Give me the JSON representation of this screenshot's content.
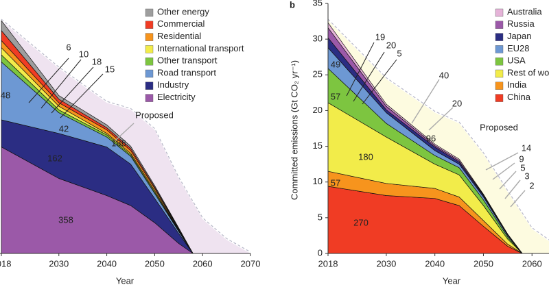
{
  "chart_data": [
    {
      "type": "stacked_area",
      "x_label": "Year",
      "x": [
        2018,
        2030,
        2040,
        2045,
        2050,
        2055,
        2058
      ],
      "xlim": [
        2018,
        2070
      ],
      "xticks": [
        2018,
        2030,
        2040,
        2050,
        2060,
        2070
      ],
      "ylim": [
        0,
        35
      ],
      "series": [
        {
          "name": "Electricity",
          "color": "#9b59a8",
          "values": [
            14.9,
            10.5,
            8.1,
            6.7,
            4.3,
            1.4,
            0
          ]
        },
        {
          "name": "Industry",
          "color": "#2b2d83",
          "values": [
            3.8,
            6.3,
            6.8,
            5.8,
            3.4,
            1.4,
            0
          ]
        },
        {
          "name": "Road transport",
          "color": "#6d98d3",
          "values": [
            8.1,
            2.9,
            1.4,
            1.1,
            0.7,
            0.3,
            0
          ]
        },
        {
          "name": "Other transport",
          "color": "#7dc540",
          "values": [
            1.0,
            0.4,
            0.3,
            0.2,
            0.2,
            0.1,
            0
          ]
        },
        {
          "name": "International transport",
          "color": "#f2ec4a",
          "values": [
            1.0,
            0.5,
            0.2,
            0.2,
            0.2,
            0.1,
            0
          ]
        },
        {
          "name": "Residential",
          "color": "#f7941d",
          "values": [
            1.0,
            0.5,
            0.5,
            0.4,
            0.3,
            0.1,
            0
          ]
        },
        {
          "name": "Commercial",
          "color": "#f03c24",
          "values": [
            1.4,
            0.5,
            0.3,
            0.3,
            0.2,
            0.1,
            0
          ]
        },
        {
          "name": "Other energy",
          "color": "#9e9e9e",
          "values": [
            1.4,
            0.5,
            0.4,
            0.3,
            0.2,
            0.1,
            0
          ]
        }
      ],
      "proposed": {
        "label": "Proposed",
        "color": "#efe3f0",
        "x": [
          2018,
          2030,
          2040,
          2045,
          2050,
          2055,
          2060,
          2065,
          2070
        ],
        "values": [
          32.6,
          25.9,
          21.1,
          20.1,
          17.3,
          10.5,
          4.8,
          1.9,
          0
        ]
      },
      "annotations": [
        {
          "text": "48",
          "color": "#ffffff"
        },
        {
          "text": "162",
          "color": "#ffffff"
        },
        {
          "text": "358",
          "color": "#ffffff"
        },
        {
          "text": "6",
          "color": "#8dc63f"
        },
        {
          "text": "10",
          "color": "#e8d800"
        },
        {
          "text": "18",
          "color": "#f03c24"
        },
        {
          "text": "15",
          "color": "#999999"
        },
        {
          "text": "42",
          "color": "#fff7a0"
        },
        {
          "text": "188",
          "color": "#999999"
        }
      ]
    },
    {
      "type": "stacked_area",
      "panel": "b",
      "x_label": "Year",
      "y_label": "Committed emissions (Gt CO₂ yr⁻¹)",
      "x": [
        2018,
        2030,
        2040,
        2045,
        2050,
        2055,
        2058
      ],
      "xlim": [
        2018,
        2063.5
      ],
      "xticks": [
        2018,
        2030,
        2040,
        2050,
        2060
      ],
      "ylim": [
        0,
        35
      ],
      "yticks": [
        0,
        5,
        10,
        15,
        20,
        25,
        30,
        35
      ],
      "series": [
        {
          "name": "China",
          "color": "#f03c24",
          "values": [
            9.4,
            8.1,
            7.7,
            6.7,
            3.8,
            1.0,
            0
          ]
        },
        {
          "name": "India",
          "color": "#f7941d",
          "values": [
            2.1,
            1.7,
            1.4,
            1.2,
            0.8,
            0.3,
            0
          ]
        },
        {
          "name": "Rest of world",
          "color": "#f2ec4a",
          "values": [
            9.6,
            6.5,
            3.4,
            3.1,
            2.1,
            0.7,
            0
          ]
        },
        {
          "name": "USA",
          "color": "#7dc540",
          "values": [
            4.8,
            1.9,
            1.2,
            1.0,
            0.8,
            0.3,
            0
          ]
        },
        {
          "name": "EU28",
          "color": "#6d98d3",
          "values": [
            2.9,
            1.5,
            0.7,
            0.5,
            0.4,
            0.2,
            0
          ]
        },
        {
          "name": "Japan",
          "color": "#2b2d83",
          "values": [
            1.4,
            0.4,
            0.5,
            0.3,
            0.2,
            0.1,
            0
          ]
        },
        {
          "name": "Russia",
          "color": "#9b59a8",
          "values": [
            1.4,
            0.5,
            0.2,
            0.2,
            0.1,
            0.1,
            0
          ]
        },
        {
          "name": "Australia",
          "color": "#e5b3d8",
          "values": [
            0.7,
            0.3,
            0.2,
            0.2,
            0.1,
            0,
            0
          ]
        }
      ],
      "proposed": {
        "label": "Proposed",
        "color": "#fdfbe0",
        "x": [
          2018,
          2030,
          2040,
          2045,
          2050,
          2055,
          2060,
          2065
        ],
        "values": [
          32.6,
          24.4,
          19.7,
          18.2,
          13.9,
          8.6,
          3.4,
          1.0
        ]
      },
      "annotations": [
        {
          "text": "49",
          "color": "#ffffff"
        },
        {
          "text": "57",
          "color": "#111111"
        },
        {
          "text": "180",
          "color": "#111111"
        },
        {
          "text": "57",
          "color": "#ffffff"
        },
        {
          "text": "270",
          "color": "#ffffff"
        },
        {
          "text": "96",
          "color": "#999999"
        },
        {
          "text": "19",
          "color": "#3b3d9a"
        },
        {
          "text": "20",
          "color": "#9b59a8"
        },
        {
          "text": "5",
          "color": "#e07ac0"
        },
        {
          "text": "40",
          "color": "#999999"
        },
        {
          "text": "20",
          "color": "#999999"
        },
        {
          "text": "14",
          "color": "#999999"
        },
        {
          "text": "9",
          "color": "#999999"
        },
        {
          "text": "5",
          "color": "#999999"
        },
        {
          "text": "3",
          "color": "#999999"
        },
        {
          "text": "2",
          "color": "#999999"
        }
      ]
    }
  ]
}
